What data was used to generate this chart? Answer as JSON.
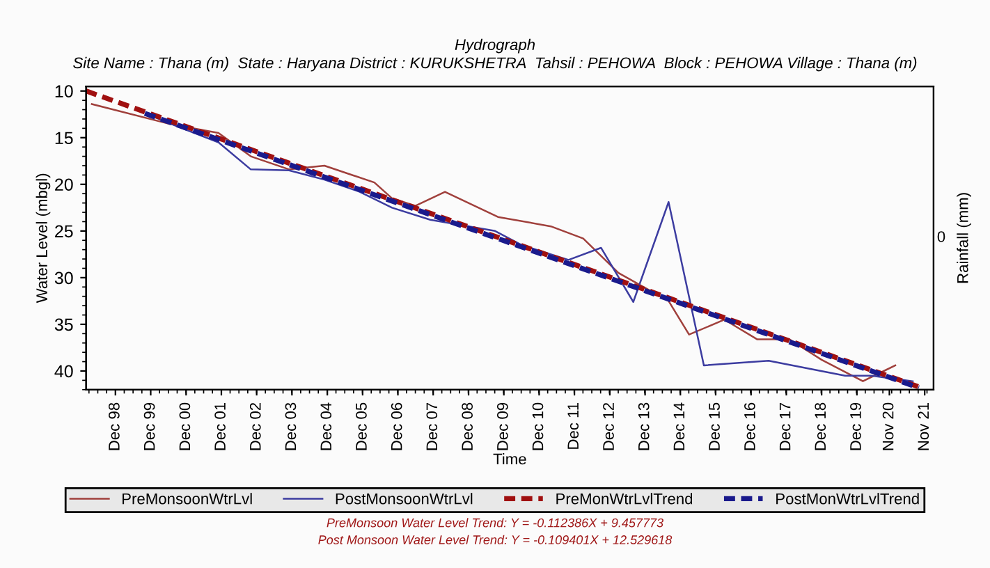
{
  "chart_data": {
    "type": "line",
    "title": "Hydrograph",
    "subtitle": "Site Name : Thana (m)  State : Haryana District : KURUKSHETRA  Tahsil : PEHOWA  Block : PEHOWA Village : Thana (m)",
    "xlabel": "Time",
    "ylabel": "Water Level (mbgl)",
    "y2label": "Rainfall (mm)",
    "series": [
      {
        "name": "PreMonsoonWtrLvl",
        "color": "#a0403c",
        "line_style": "solid",
        "x": [
          "1998-04",
          "2000-06",
          "2001-11",
          "2002-10",
          "2003-11",
          "2004-11",
          "2006-04",
          "2006-10",
          "2007-06",
          "2008-04",
          "2009-10",
          "2011-04",
          "2012-03",
          "2013-03",
          "2014-08",
          "2015-03",
          "2016-03",
          "2017-02",
          "2018-01",
          "2018-12",
          "2020-02",
          "2021-01"
        ],
        "values": [
          11.4,
          13.5,
          14.5,
          17.0,
          18.4,
          18.0,
          19.8,
          21.5,
          22.3,
          20.8,
          23.5,
          24.5,
          25.8,
          29.5,
          32.5,
          36.1,
          34.5,
          36.6,
          36.6,
          38.8,
          41.1,
          39.4
        ]
      },
      {
        "name": "PostMonsoonWtrLvl",
        "color": "#3c3ca0",
        "line_style": "solid",
        "x": [
          "1999-11",
          "2000-09",
          "2001-11",
          "2002-10",
          "2003-11",
          "2004-11",
          "2005-11",
          "2006-10",
          "2007-11",
          "2009-09",
          "2010-06",
          "2011-10",
          "2012-09",
          "2013-08",
          "2014-08",
          "2015-08",
          "2017-06",
          "2019-08",
          "2020-05",
          "2021-07"
        ],
        "values": [
          12.5,
          13.8,
          15.5,
          18.4,
          18.5,
          19.5,
          20.8,
          22.5,
          23.8,
          25.0,
          26.5,
          28.1,
          26.8,
          32.6,
          21.9,
          39.4,
          38.9,
          40.5,
          40.5,
          41.1
        ]
      },
      {
        "name": "PreMonWtrLvlTrend",
        "color": "#a01010",
        "line_style": "dashed",
        "x": [
          "1998-02",
          "2021-09"
        ],
        "values": [
          10.0,
          41.7
        ]
      },
      {
        "name": "PostMonWtrLvlTrend",
        "color": "#1a1a8c",
        "line_style": "dashed",
        "x": [
          "1999-10",
          "2021-09"
        ],
        "values": [
          12.4,
          41.8
        ]
      }
    ],
    "xlim": [
      "1998-02",
      "2022-02"
    ],
    "xticks": [
      {
        "value": "1998-12-01",
        "label": "Dec 98"
      },
      {
        "value": "1999-12-01",
        "label": "Dec 99"
      },
      {
        "value": "2000-12-01",
        "label": "Dec 00"
      },
      {
        "value": "2001-12-01",
        "label": "Dec 01"
      },
      {
        "value": "2002-12-01",
        "label": "Dec 02"
      },
      {
        "value": "2003-12-01",
        "label": "Dec 03"
      },
      {
        "value": "2004-12-01",
        "label": "Dec 04"
      },
      {
        "value": "2005-12-01",
        "label": "Dec 05"
      },
      {
        "value": "2006-12-01",
        "label": "Dec 06"
      },
      {
        "value": "2007-12-01",
        "label": "Dec 07"
      },
      {
        "value": "2008-12-01",
        "label": "Dec 08"
      },
      {
        "value": "2009-12-01",
        "label": "Dec 09"
      },
      {
        "value": "2010-12-01",
        "label": "Dec 10"
      },
      {
        "value": "2011-12-01",
        "label": "Dec 11"
      },
      {
        "value": "2012-12-01",
        "label": "Dec 12"
      },
      {
        "value": "2013-12-01",
        "label": "Dec 13"
      },
      {
        "value": "2014-12-01",
        "label": "Dec 14"
      },
      {
        "value": "2015-12-01",
        "label": "Dec 15"
      },
      {
        "value": "2016-12-01",
        "label": "Dec 16"
      },
      {
        "value": "2017-12-01",
        "label": "Dec 17"
      },
      {
        "value": "2018-12-01",
        "label": "Dec 18"
      },
      {
        "value": "2019-12-01",
        "label": "Dec 19"
      },
      {
        "value": "2020-11-01",
        "label": "Nov 20"
      },
      {
        "value": "2021-11-01",
        "label": "Nov 21"
      }
    ],
    "ylim": [
      42,
      9.5
    ],
    "yticks": [
      10,
      15,
      20,
      25,
      30,
      35,
      40
    ],
    "marker": "none",
    "grid": false,
    "legend": "bottom",
    "annotations": [
      "0",
      "PreMonsoon Water Level Trend: Y = -0.112386X + 9.457773",
      "Post Monsoon Water Level Trend: Y = -0.109401X + 12.529618"
    ]
  }
}
